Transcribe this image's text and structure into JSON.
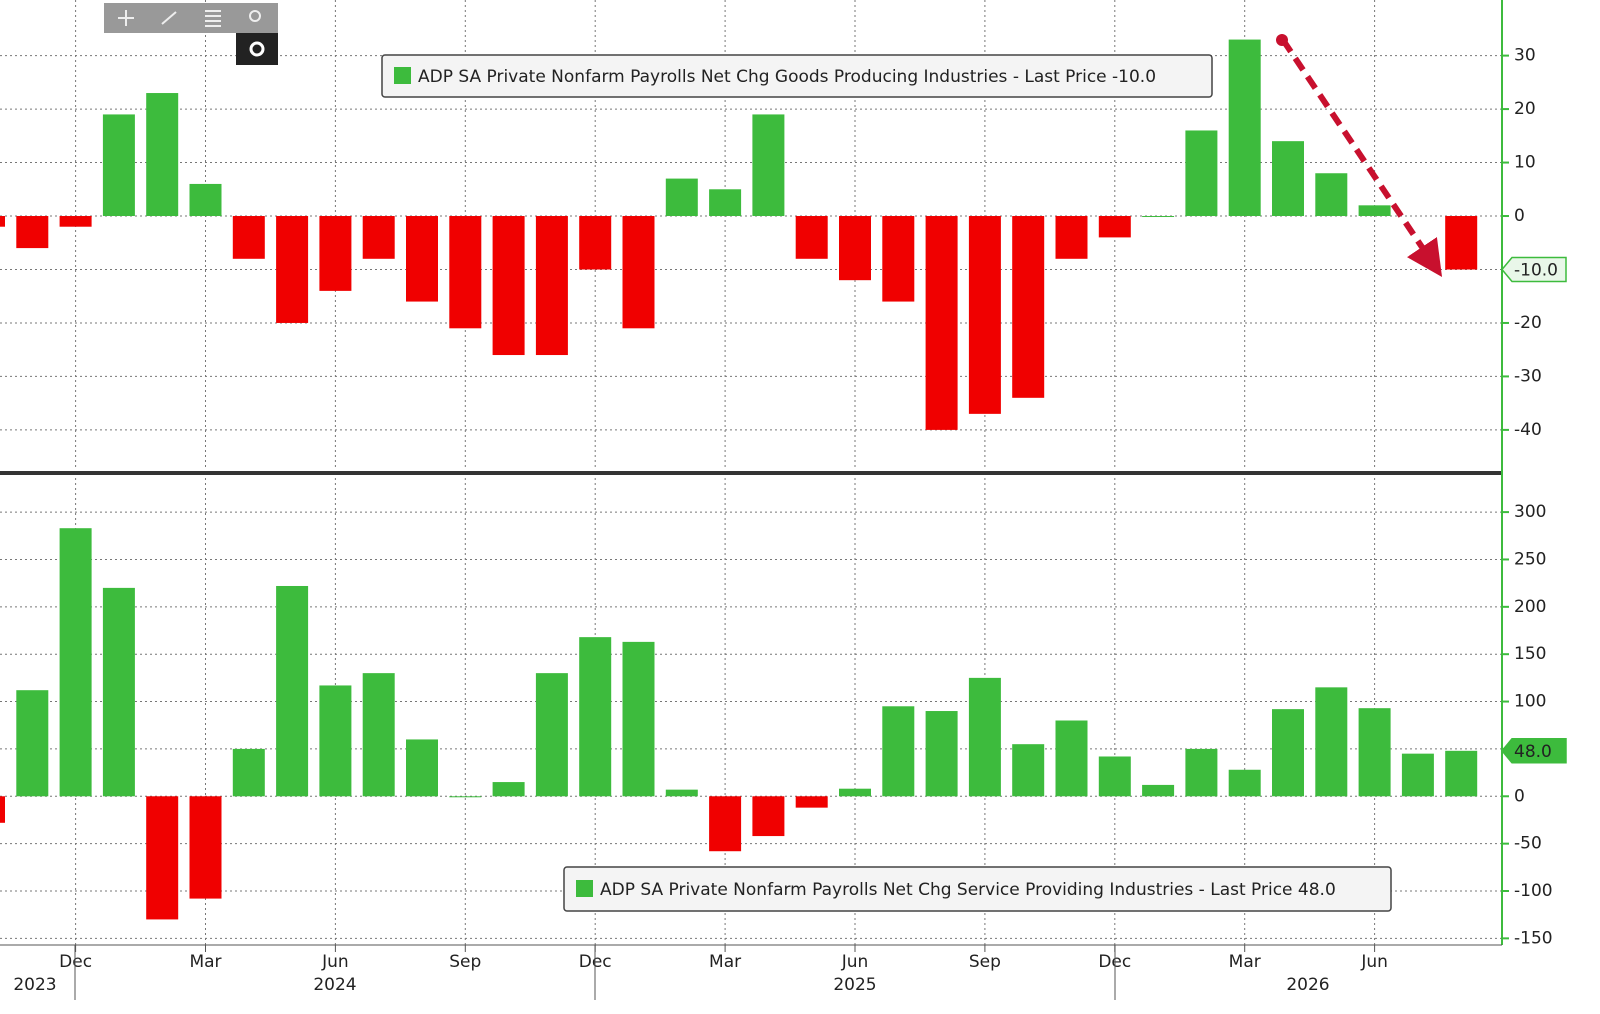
{
  "chart_data": [
    {
      "type": "bar",
      "series": [
        {
          "name": "ADP SA Private Nonfarm Payrolls Net Chg Goods Producing Industries  - Last Price  -10.0",
          "color": "#3dbb3d",
          "negative_color": "#f00000",
          "values": [
            -2,
            -6,
            -2,
            19,
            23,
            6,
            -8,
            -20,
            -14,
            -8,
            -16,
            -21,
            -26,
            -26,
            -10,
            -21,
            7,
            5,
            19,
            -8,
            -12,
            -16,
            -40,
            -37,
            -34,
            -8,
            -4,
            0,
            16,
            33,
            14,
            8,
            2,
            null,
            -10
          ]
        }
      ],
      "last_value_label": "-10.0",
      "ylim": [
        -47.5,
        40.4
      ],
      "yticks": [
        30,
        20,
        10,
        0,
        -10,
        -20,
        -30,
        -40
      ],
      "grid": true
    },
    {
      "type": "bar",
      "categories": [
        null,
        null,
        "Dec",
        null,
        null,
        "Mar",
        null,
        null,
        "Jun",
        null,
        null,
        "Sep",
        null,
        null,
        "Dec",
        null,
        null,
        "Mar",
        null,
        null,
        "Jun",
        null,
        null,
        "Sep",
        null,
        null,
        "Dec",
        null,
        null,
        "Mar",
        null,
        null,
        "Jun",
        null,
        null
      ],
      "year_labels": [
        "2023",
        "2024",
        "2025",
        "2026"
      ],
      "series": [
        {
          "name": "ADP SA Private Nonfarm Payrolls Net Chg Service Providing Industries  - Last Price 48.0",
          "color": "#3dbb3d",
          "negative_color": "#f00000",
          "values": [
            -28,
            112,
            283,
            220,
            -130,
            -108,
            50,
            222,
            117,
            130,
            60,
            0,
            15,
            130,
            168,
            163,
            7,
            -58,
            -42,
            -12,
            8,
            95,
            90,
            125,
            55,
            80,
            42,
            12,
            50,
            28,
            92,
            115,
            93,
            45,
            48
          ]
        }
      ],
      "last_value_label": "48.0",
      "ylim": [
        -157,
        336
      ],
      "yticks": [
        300,
        250,
        200,
        150,
        100,
        50,
        0,
        -50,
        -100,
        -150
      ],
      "grid": true
    }
  ]
}
